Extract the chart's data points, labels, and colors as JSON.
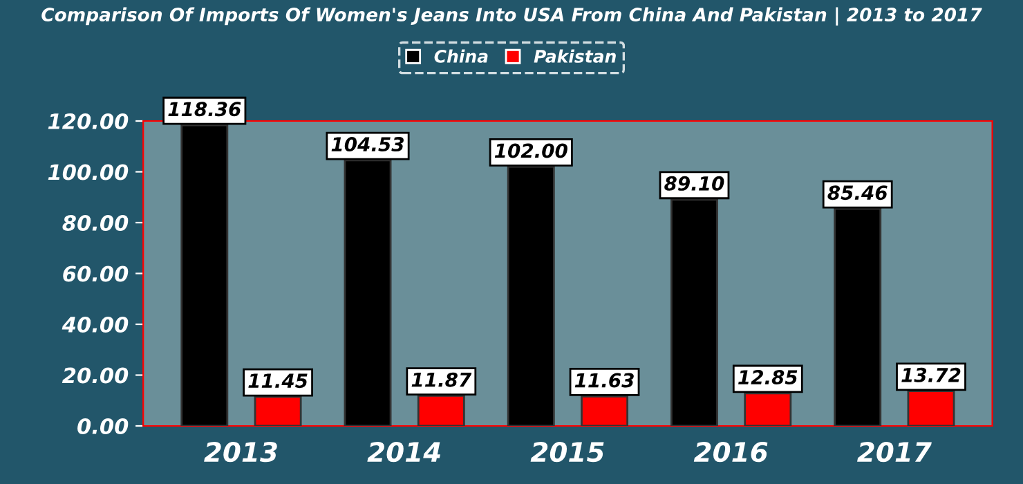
{
  "chart_data": {
    "type": "bar",
    "title": "Comparison Of Imports Of Women's Jeans Into USA From China And Pakistan | 2013 to 2017",
    "categories": [
      "2013",
      "2014",
      "2015",
      "2016",
      "2017"
    ],
    "series": [
      {
        "name": "China",
        "color": "#000000",
        "values": [
          118.36,
          104.53,
          102.0,
          89.1,
          85.46
        ],
        "value_labels": [
          "118.36",
          "104.53",
          "102.00",
          "89.10",
          "85.46"
        ]
      },
      {
        "name": "Pakistan",
        "color": "#ff0000",
        "values": [
          11.45,
          11.87,
          11.63,
          12.85,
          13.72
        ],
        "value_labels": [
          "11.45",
          "11.87",
          "11.63",
          "12.85",
          "13.72"
        ]
      }
    ],
    "ylim": [
      0,
      120
    ],
    "yticks": [
      {
        "value": 0,
        "label": "0.00"
      },
      {
        "value": 20,
        "label": "20.00"
      },
      {
        "value": 40,
        "label": "40.00"
      },
      {
        "value": 60,
        "label": "60.00"
      },
      {
        "value": 80,
        "label": "80.00"
      },
      {
        "value": 100,
        "label": "100.00"
      },
      {
        "value": 120,
        "label": "120.00"
      }
    ],
    "grid": false,
    "legend": "top"
  }
}
